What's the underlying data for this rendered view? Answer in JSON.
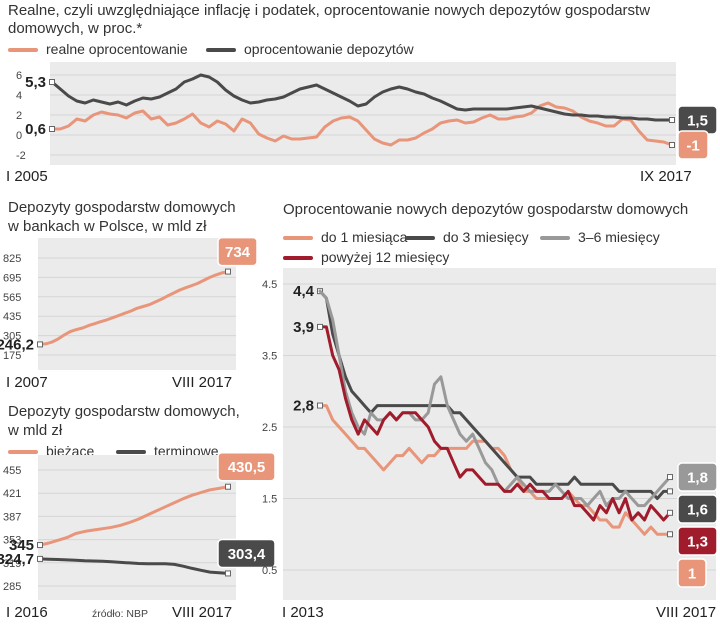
{
  "colors": {
    "pink": "#e8957a",
    "dark": "#4a4a4a",
    "gray": "#999999",
    "red": "#a01c2c",
    "panel": "#ebebeb"
  },
  "chart_data": [
    {
      "type": "line",
      "title": "Realne, czyli uwzględniające inflację i podatek, oprocentowanie nowych depozytów gospodarstw domowych, w proc.*",
      "period_start": "I 2005",
      "period_end": "IX 2017",
      "yticks": [
        "6",
        "4",
        "2",
        "0",
        "-2"
      ],
      "ylim": [
        -2,
        6
      ],
      "series": [
        {
          "name": "realne oprocentowanie",
          "color": "#e8957a",
          "start_label": "0,6",
          "end_label": "-1",
          "values": [
            0.6,
            0.6,
            0.9,
            1.6,
            1.4,
            2.0,
            2.3,
            2.1,
            2.0,
            1.7,
            2.2,
            2.4,
            1.6,
            1.8,
            1.0,
            1.2,
            1.6,
            2.1,
            1.2,
            0.8,
            1.4,
            1.1,
            0.4,
            1.6,
            1.2,
            0.1,
            -0.3,
            -0.6,
            -0.1,
            -0.4,
            -0.4,
            -0.3,
            -0.2,
            0.8,
            1.4,
            1.7,
            1.8,
            1.4,
            0.5,
            -0.4,
            -0.8,
            -1.0,
            -0.5,
            -0.5,
            -0.3,
            0.2,
            0.6,
            1.2,
            1.4,
            1.5,
            1.2,
            1.3,
            1.7,
            2.0,
            1.6,
            1.6,
            1.8,
            1.9,
            2.2,
            2.9,
            3.2,
            2.8,
            2.7,
            2.4,
            1.8,
            1.4,
            1.2,
            0.9,
            0.9,
            1.6,
            1.5,
            0.4,
            -0.5,
            -0.6,
            -0.7,
            -1.0
          ]
        },
        {
          "name": "oprocentowanie depozytów",
          "color": "#4a4a4a",
          "start_label": "5,3",
          "end_label": "1,5",
          "values": [
            5.3,
            4.6,
            3.9,
            3.4,
            3.2,
            3.5,
            3.3,
            3.1,
            3.3,
            3.0,
            3.4,
            3.7,
            3.6,
            3.8,
            4.2,
            4.6,
            5.3,
            5.6,
            6.0,
            5.8,
            5.3,
            4.5,
            3.9,
            3.5,
            3.2,
            3.3,
            3.5,
            3.6,
            3.8,
            4.2,
            4.6,
            4.8,
            5.0,
            4.6,
            4.2,
            3.8,
            3.4,
            2.9,
            3.1,
            3.8,
            4.3,
            4.6,
            4.8,
            4.6,
            4.3,
            4.1,
            3.7,
            3.4,
            3.0,
            2.6,
            2.5,
            2.6,
            2.6,
            2.6,
            2.6,
            2.6,
            2.7,
            2.8,
            2.9,
            2.7,
            2.5,
            2.3,
            2.1,
            2.0,
            2.0,
            1.9,
            1.9,
            1.8,
            1.8,
            1.7,
            1.7,
            1.6,
            1.6,
            1.5,
            1.5,
            1.5
          ]
        }
      ]
    },
    {
      "type": "line",
      "title": [
        "Depozyty gospodarstw domowych",
        "w bankach w Polsce, w mld zł"
      ],
      "period_start": "I 2007",
      "period_end": "VIII 2017",
      "yticks": [
        "825",
        "695",
        "565",
        "435",
        "305",
        "175"
      ],
      "ylim": [
        175,
        825
      ],
      "series": [
        {
          "name": "",
          "color": "#e8957a",
          "start_label": "246,2",
          "end_label": "734",
          "values": [
            246,
            250,
            262,
            283,
            310,
            332,
            345,
            356,
            372,
            385,
            398,
            410,
            425,
            440,
            455,
            470,
            488,
            500,
            512,
            530,
            548,
            570,
            590,
            610,
            625,
            640,
            655,
            675,
            695,
            712,
            725,
            734
          ]
        }
      ]
    },
    {
      "type": "line",
      "title": [
        "Depozyty gospodarstw domowych,",
        "w mld zł"
      ],
      "period_start": "I 2016",
      "period_end": "VIII 2017",
      "source": "źródło: NBP",
      "yticks": [
        "455",
        "421",
        "387",
        "353",
        "319",
        "285"
      ],
      "ylim": [
        285,
        455
      ],
      "series": [
        {
          "name": "bieżące",
          "color": "#e8957a",
          "start_label": "345",
          "end_label": "430,5",
          "values": [
            345,
            348,
            352,
            356,
            362,
            365,
            367,
            369,
            371,
            374,
            378,
            383,
            389,
            395,
            401,
            407,
            413,
            418,
            422,
            426,
            428,
            430.5
          ]
        },
        {
          "name": "terminowe",
          "color": "#4a4a4a",
          "start_label": "324,7",
          "end_label": "303,4",
          "values": [
            324.7,
            324.3,
            323.8,
            323.2,
            322.6,
            322,
            321.6,
            321.2,
            320.5,
            319.6,
            318.8,
            318,
            317.6,
            317.5,
            317.5,
            316.6,
            314,
            310.8,
            308,
            305.4,
            304.3,
            303.4
          ]
        }
      ]
    },
    {
      "type": "line",
      "title": "Oprocentowanie nowych depozytów gospodarstw domowych",
      "period_start": "I 2013",
      "period_end": "VIII 2017",
      "yticks": [
        "4.5",
        "3.5",
        "2.5",
        "1.5",
        "0.5"
      ],
      "ylim": [
        0.5,
        4.5
      ],
      "series": [
        {
          "name": "do 1 miesiąca",
          "color": "#e8957a",
          "start_label": "2,8",
          "end_label": "1",
          "values": [
            2.8,
            2.8,
            2.6,
            2.5,
            2.4,
            2.3,
            2.2,
            2.2,
            2.1,
            2.0,
            1.9,
            2.0,
            2.1,
            2.1,
            2.2,
            2.1,
            2.0,
            2.1,
            2.1,
            2.2,
            2.2,
            2.2,
            2.2,
            2.2,
            2.3,
            2.3,
            2.3,
            2.2,
            2.2,
            2.1,
            1.9,
            1.8,
            1.6,
            1.6,
            1.5,
            1.5,
            1.5,
            1.5,
            1.5,
            1.6,
            1.5,
            1.4,
            1.4,
            1.3,
            1.2,
            1.2,
            1.1,
            1.1,
            1.3,
            1.2,
            1.1,
            1.0,
            1.1,
            1.0,
            1.0,
            1.0
          ]
        },
        {
          "name": "do 3 miesięcy",
          "color": "#4a4a4a",
          "start_label": "4,4",
          "end_label": "1,6",
          "values": [
            4.4,
            4.3,
            3.8,
            3.5,
            3.2,
            3.0,
            2.9,
            2.8,
            2.7,
            2.8,
            2.8,
            2.8,
            2.8,
            2.8,
            2.8,
            2.8,
            2.8,
            2.8,
            2.8,
            2.8,
            2.8,
            2.7,
            2.7,
            2.6,
            2.5,
            2.4,
            2.3,
            2.2,
            2.1,
            2.0,
            1.9,
            1.8,
            1.8,
            1.8,
            1.7,
            1.7,
            1.7,
            1.7,
            1.7,
            1.7,
            1.8,
            1.7,
            1.7,
            1.7,
            1.7,
            1.7,
            1.7,
            1.6,
            1.6,
            1.6,
            1.6,
            1.6,
            1.6,
            1.5,
            1.6,
            1.6
          ]
        },
        {
          "name": "3–6 miesięcy",
          "color": "#999999",
          "start_label": "",
          "end_label": "1,8",
          "values": [
            4.4,
            4.3,
            4.0,
            3.5,
            3.0,
            2.7,
            2.5,
            2.4,
            2.7,
            2.6,
            2.6,
            2.7,
            2.6,
            2.7,
            2.7,
            2.6,
            2.6,
            2.7,
            3.1,
            3.2,
            2.8,
            2.6,
            2.4,
            2.3,
            2.4,
            2.2,
            2.0,
            1.9,
            1.7,
            1.6,
            1.7,
            1.8,
            1.7,
            1.6,
            1.6,
            1.6,
            1.6,
            1.7,
            1.6,
            1.5,
            1.5,
            1.5,
            1.4,
            1.5,
            1.6,
            1.4,
            1.5,
            1.5,
            1.6,
            1.5,
            1.4,
            1.4,
            1.5,
            1.6,
            1.7,
            1.8
          ]
        },
        {
          "name": "powyżej 12 miesięcy",
          "color": "#a01c2c",
          "start_label": "3,9",
          "end_label": "1,3",
          "values": [
            3.9,
            3.9,
            3.5,
            3.3,
            2.9,
            2.6,
            2.4,
            2.6,
            2.5,
            2.4,
            2.6,
            2.7,
            2.6,
            2.7,
            2.7,
            2.7,
            2.6,
            2.5,
            2.3,
            2.2,
            2.2,
            2.0,
            1.8,
            1.9,
            1.9,
            1.8,
            1.7,
            1.7,
            1.7,
            1.6,
            1.6,
            1.7,
            1.6,
            1.7,
            1.6,
            1.6,
            1.5,
            1.5,
            1.5,
            1.6,
            1.4,
            1.4,
            1.3,
            1.2,
            1.4,
            1.3,
            1.5,
            1.3,
            1.5,
            1.2,
            1.3,
            1.2,
            1.4,
            1.3,
            1.2,
            1.3
          ]
        }
      ]
    }
  ]
}
